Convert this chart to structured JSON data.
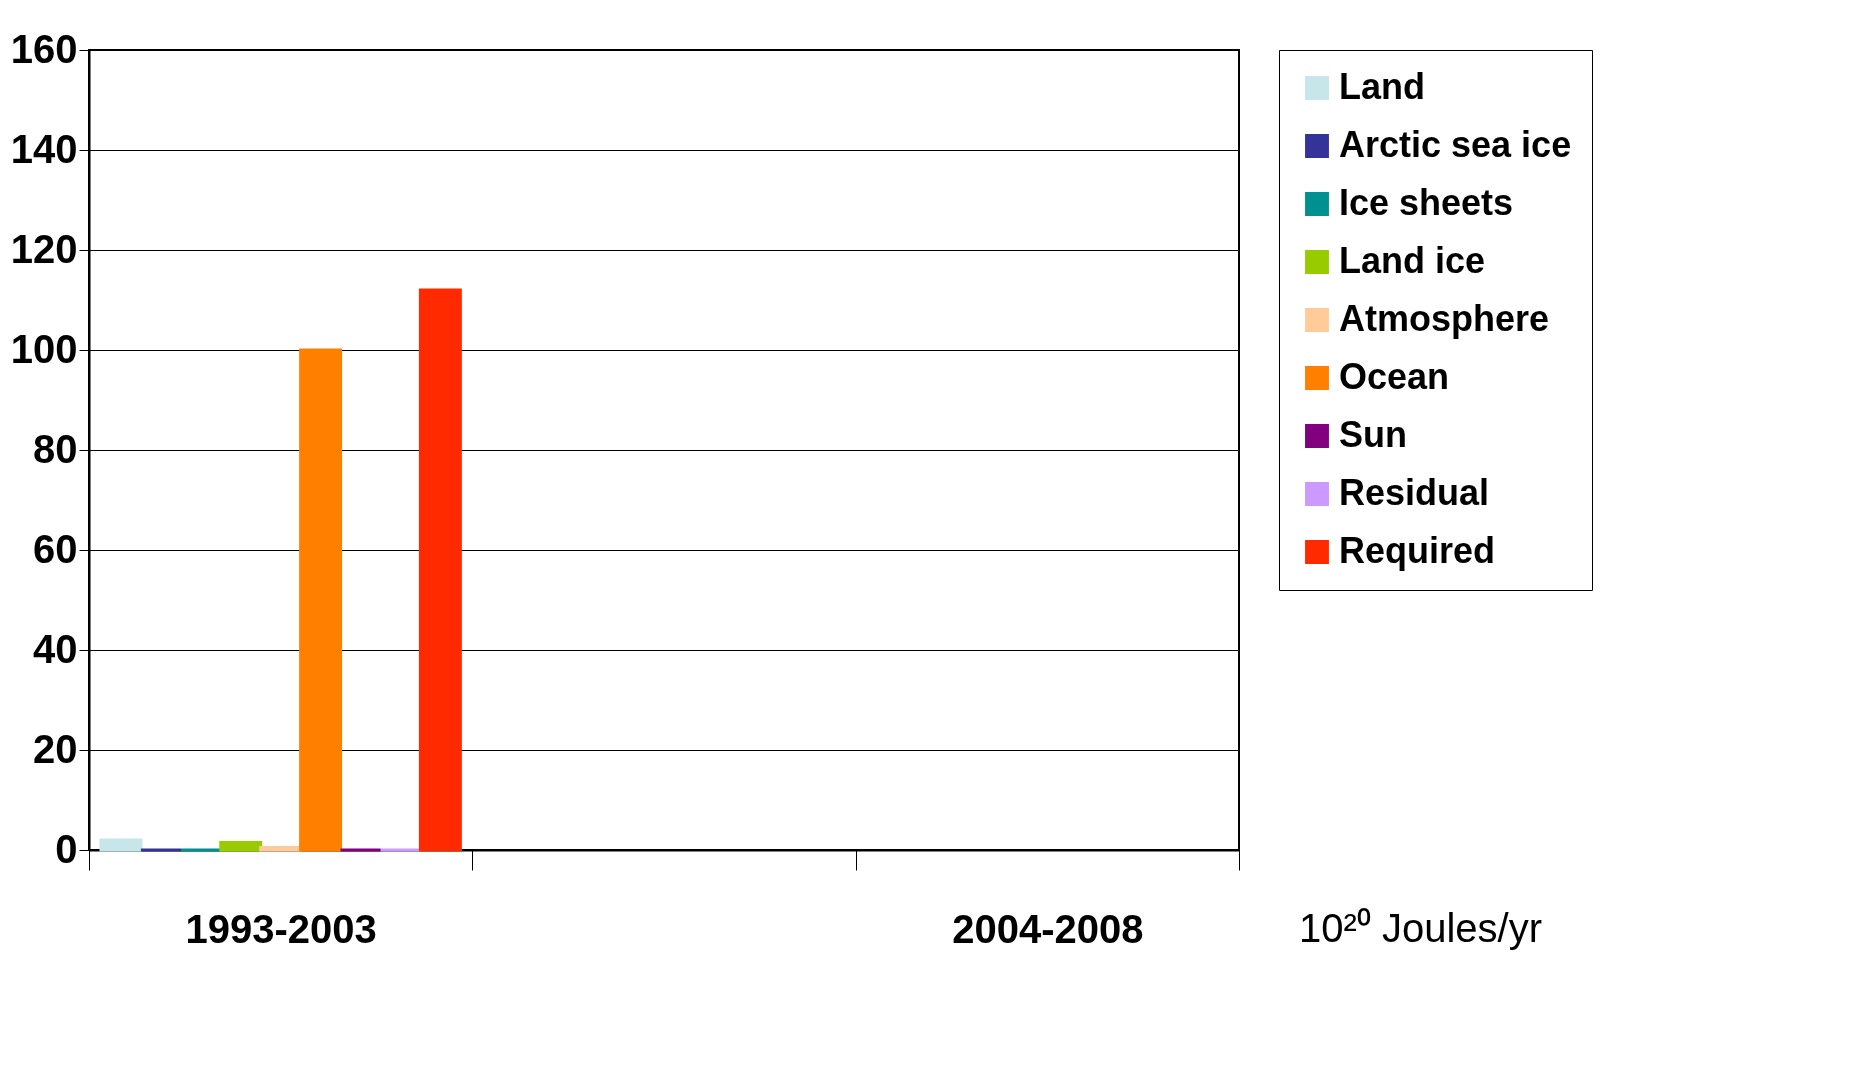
{
  "chart_data": {
    "type": "bar",
    "categories": [
      "1993-2003",
      null,
      "2004-2008"
    ],
    "series": [
      {
        "name": "Land",
        "color": "#c6e6ea",
        "values": [
          2,
          null,
          null
        ]
      },
      {
        "name": "Arctic sea ice",
        "color": "#333399",
        "values": [
          0,
          null,
          null
        ]
      },
      {
        "name": "Ice sheets",
        "color": "#009090",
        "values": [
          0,
          null,
          null
        ]
      },
      {
        "name": "Land ice",
        "color": "#99cc00",
        "values": [
          1.5,
          null,
          null
        ]
      },
      {
        "name": "Atmosphere",
        "color": "#ffcc99",
        "values": [
          0.5,
          null,
          null
        ]
      },
      {
        "name": "Ocean",
        "color": "#ff8000",
        "values": [
          100,
          null,
          null
        ]
      },
      {
        "name": "Sun",
        "color": "#800080",
        "values": [
          0,
          null,
          null
        ]
      },
      {
        "name": "Residual",
        "color": "#cc99ff",
        "values": [
          0,
          null,
          null
        ]
      },
      {
        "name": "Required",
        "color": "#ff2a00",
        "values": [
          112,
          null,
          null
        ]
      }
    ],
    "ylim": [
      0,
      160
    ],
    "yticks": [
      0,
      20,
      40,
      60,
      80,
      100,
      120,
      140,
      160
    ],
    "grid": "y",
    "legend": "right",
    "annotations": [
      "10²⁰ Joules/yr"
    ]
  }
}
